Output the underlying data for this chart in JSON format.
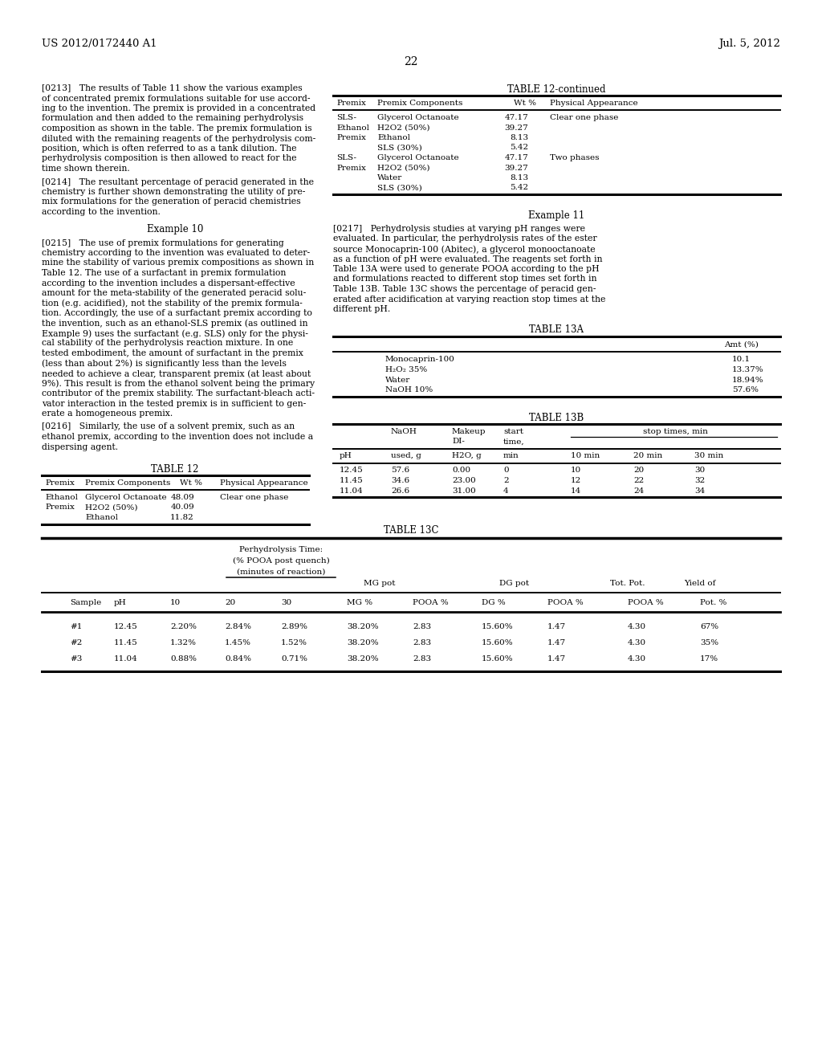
{
  "page_header_left": "US 2012/0172440 A1",
  "page_header_right": "Jul. 5, 2012",
  "page_number": "22",
  "background_color": "#ffffff",
  "table12cont_title": "TABLE 12-continued",
  "table12cont_rows": [
    [
      "SLS-",
      "Glycerol Octanoate",
      "47.17",
      "Clear one phase"
    ],
    [
      "Ethanol",
      "H2O2 (50%)",
      "39.27",
      ""
    ],
    [
      "Premix",
      "Ethanol",
      "8.13",
      ""
    ],
    [
      "",
      "SLS (30%)",
      "5.42",
      ""
    ],
    [
      "SLS-",
      "Glycerol Octanoate",
      "47.17",
      "Two phases"
    ],
    [
      "Premix",
      "H2O2 (50%)",
      "39.27",
      ""
    ],
    [
      "",
      "Water",
      "8.13",
      ""
    ],
    [
      "",
      "SLS (30%)",
      "5.42",
      ""
    ]
  ],
  "example11_title": "Example 11",
  "table13a_title": "TABLE 13A",
  "table13a_header": "Amt (%)",
  "table13a_rows": [
    [
      "Monocaprin-100",
      "10.1"
    ],
    [
      "H₂O₂ 35%",
      "13.37%"
    ],
    [
      "Water",
      "18.94%"
    ],
    [
      "NaOH 10%",
      "57.6%"
    ]
  ],
  "table13b_title": "TABLE 13B",
  "table13b_rows": [
    [
      "12.45",
      "57.6",
      "0.00",
      "0",
      "10",
      "20",
      "30"
    ],
    [
      "11.45",
      "34.6",
      "23.00",
      "2",
      "12",
      "22",
      "32"
    ],
    [
      "11.04",
      "26.6",
      "31.00",
      "4",
      "14",
      "24",
      "34"
    ]
  ],
  "table12_title": "TABLE 12",
  "table12_rows": [
    [
      "Ethanol",
      "Glycerol Octanoate",
      "48.09",
      "Clear one phase"
    ],
    [
      "Premix",
      "H2O2 (50%)",
      "40.09",
      ""
    ],
    [
      "",
      "Ethanol",
      "11.82",
      ""
    ]
  ],
  "table13c_title": "TABLE 13C",
  "table13c_sub1": "Perhydrolysis Time:",
  "table13c_sub2": "(% POOA post quench)",
  "table13c_sub3": "(minutes of reaction)",
  "table13c_rows": [
    [
      "#1",
      "12.45",
      "2.20%",
      "2.84%",
      "2.89%",
      "38.20%",
      "2.83",
      "15.60%",
      "1.47",
      "4.30",
      "67%"
    ],
    [
      "#2",
      "11.45",
      "1.32%",
      "1.45%",
      "1.52%",
      "38.20%",
      "2.83",
      "15.60%",
      "1.47",
      "4.30",
      "35%"
    ],
    [
      "#3",
      "11.04",
      "0.88%",
      "0.84%",
      "0.71%",
      "38.20%",
      "2.83",
      "15.60%",
      "1.47",
      "4.30",
      "17%"
    ]
  ]
}
